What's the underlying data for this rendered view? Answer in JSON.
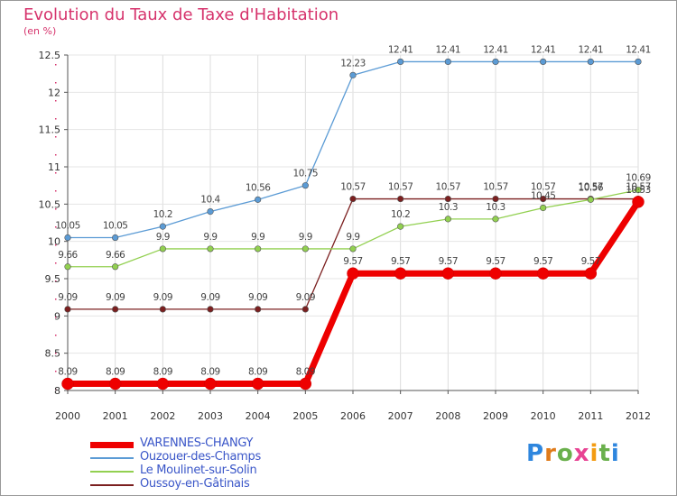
{
  "title": "Evolution du Taux de Taxe d'Habitation",
  "unit_label": "(en %)",
  "logo": {
    "letters": [
      "P",
      "r",
      "o",
      "x",
      "i",
      "t",
      "i"
    ],
    "colors": [
      "#2e86de",
      "#e07b1a",
      "#6ab04c",
      "#e84393",
      "#f39c12",
      "#6ab04c",
      "#2e86de"
    ]
  },
  "chart_data": {
    "type": "line",
    "title": "Evolution du Taux de Taxe d'Habitation",
    "ylabel": "(en %)",
    "x": [
      "2000",
      "2001",
      "2002",
      "2003",
      "2004",
      "2005",
      "2006",
      "2007",
      "2008",
      "2009",
      "2010",
      "2011",
      "2012"
    ],
    "ylim": [
      8,
      12.5
    ],
    "yticks": [
      "8",
      "8.5",
      "9",
      "9.5",
      "10",
      "10.5",
      "11",
      "11.5",
      "12",
      "12.5"
    ],
    "legend_position": "bottom-left",
    "series": [
      {
        "name": "VARENNES-CHANGY",
        "color": "#ee0000",
        "values": [
          8.09,
          8.09,
          8.09,
          8.09,
          8.09,
          8.09,
          9.57,
          9.57,
          9.57,
          9.57,
          9.57,
          9.57,
          10.53
        ],
        "labels": [
          "8.09",
          "8.09",
          "8.09",
          "8.09",
          "8.09",
          "8.09",
          "9.57",
          "9.57",
          "9.57",
          "9.57",
          "9.57",
          "9.57",
          "10.53"
        ]
      },
      {
        "name": "Ouzouer-des-Champs",
        "color": "#5b9bd5",
        "values": [
          10.05,
          10.05,
          10.2,
          10.4,
          10.56,
          10.75,
          12.23,
          12.41,
          12.41,
          12.41,
          12.41,
          12.41,
          12.41
        ],
        "labels": [
          "10.05",
          "10.05",
          "10.2",
          "10.4",
          "10.56",
          "10.75",
          "12.23",
          "12.41",
          "12.41",
          "12.41",
          "12.41",
          "12.41",
          "12.41"
        ]
      },
      {
        "name": "Le Moulinet-sur-Solin",
        "color": "#92d050",
        "values": [
          9.66,
          9.66,
          9.9,
          9.9,
          9.9,
          9.9,
          9.9,
          10.2,
          10.3,
          10.3,
          10.45,
          10.56,
          10.69
        ],
        "labels": [
          "9.66",
          "9.66",
          "9.9",
          "9.9",
          "9.9",
          "9.9",
          "9.9",
          "10.2",
          "10.3",
          "10.3",
          "10.45",
          "10.56",
          "10.69"
        ]
      },
      {
        "name": "Oussoy-en-Gâtinais",
        "color": "#7b1f1f",
        "values": [
          9.09,
          9.09,
          9.09,
          9.09,
          9.09,
          9.09,
          10.57,
          10.57,
          10.57,
          10.57,
          10.57,
          10.57,
          10.57
        ],
        "labels": [
          "9.09",
          "9.09",
          "9.09",
          "9.09",
          "9.09",
          "9.09",
          "10.57",
          "10.57",
          "10.57",
          "10.57",
          "10.57",
          "10.57",
          "10.57"
        ]
      }
    ]
  }
}
